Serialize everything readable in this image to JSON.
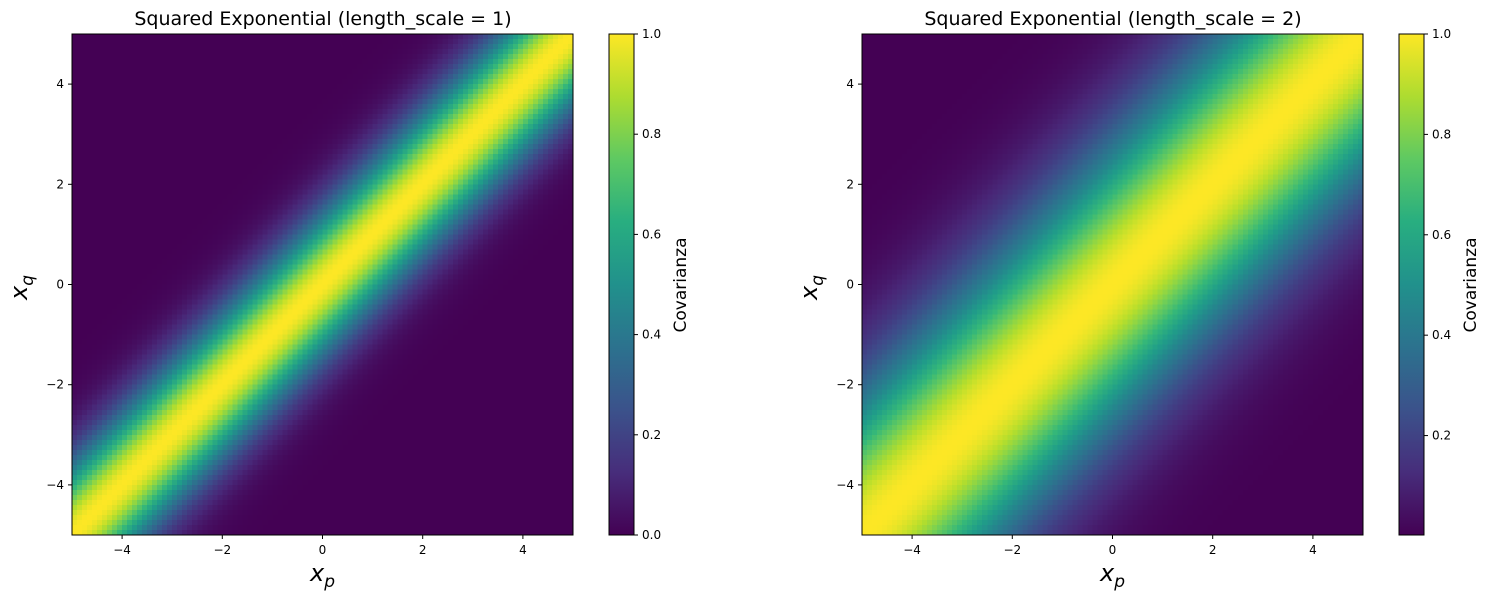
{
  "chart_data": [
    {
      "type": "heatmap",
      "title": "Squared Exponential (length_scale = 1)",
      "xlabel": {
        "var": "x",
        "sub": "p"
      },
      "ylabel": {
        "var": "x",
        "sub": "q"
      },
      "kernel": "squared_exponential",
      "length_scale": 1,
      "grid_points": 100,
      "xlim": [
        -5,
        5
      ],
      "ylim": [
        -5,
        5
      ],
      "xticks": [
        -4,
        -2,
        0,
        2,
        4
      ],
      "yticks": [
        -4,
        -2,
        0,
        2,
        4
      ],
      "xtick_labels": [
        "−4",
        "−2",
        "0",
        "2",
        "4"
      ],
      "ytick_labels": [
        "−4",
        "−2",
        "0",
        "2",
        "4"
      ],
      "colormap": "viridis",
      "colorbar": {
        "label": "Covarianza",
        "range": [
          0.0,
          1.0
        ],
        "ticks": [
          0.0,
          0.2,
          0.4,
          0.6,
          0.8,
          1.0
        ],
        "tick_labels": [
          "0.0",
          "0.2",
          "0.4",
          "0.6",
          "0.8",
          "1.0"
        ]
      }
    },
    {
      "type": "heatmap",
      "title": "Squared Exponential (length_scale = 2)",
      "xlabel": {
        "var": "x",
        "sub": "p"
      },
      "ylabel": {
        "var": "x",
        "sub": "q"
      },
      "kernel": "squared_exponential",
      "length_scale": 2,
      "grid_points": 100,
      "xlim": [
        -5,
        5
      ],
      "ylim": [
        -5,
        5
      ],
      "xticks": [
        -4,
        -2,
        0,
        2,
        4
      ],
      "yticks": [
        -4,
        -2,
        0,
        2,
        4
      ],
      "xtick_labels": [
        "−4",
        "−2",
        "0",
        "2",
        "4"
      ],
      "ytick_labels": [
        "−4",
        "−2",
        "0",
        "2",
        "4"
      ],
      "colormap": "viridis",
      "colorbar": {
        "label": "Covarianza",
        "range": [
          0.0019,
          1.0
        ],
        "ticks": [
          0.2,
          0.4,
          0.6,
          0.8,
          1.0
        ],
        "tick_labels": [
          "0.2",
          "0.4",
          "0.6",
          "0.8",
          "1.0"
        ]
      }
    }
  ]
}
